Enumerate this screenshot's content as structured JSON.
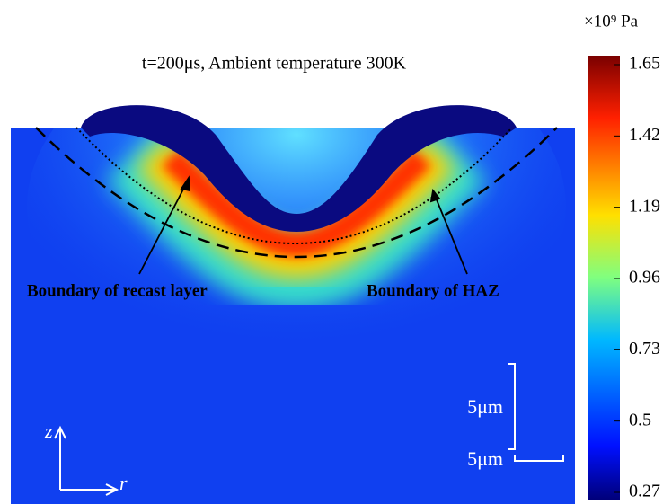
{
  "chart_data": {
    "type": "contour",
    "title": "t=200μs, Ambient temperature 300K",
    "colorbar_label": "×10⁹ Pa",
    "clim": [
      0.27,
      1.65
    ],
    "cticks": [
      0.27,
      0.5,
      {
        "value": 0.73,
        "label": "0.73"
      },
      {
        "value": 0.96,
        "label": "0.96"
      },
      1.19,
      1.42,
      1.65
    ],
    "annotations": [
      "Boundary of recast layer",
      "Boundary of HAZ"
    ],
    "scale_bars": [
      "5μm",
      "5μm"
    ],
    "axes": [
      "z",
      "r"
    ]
  }
}
